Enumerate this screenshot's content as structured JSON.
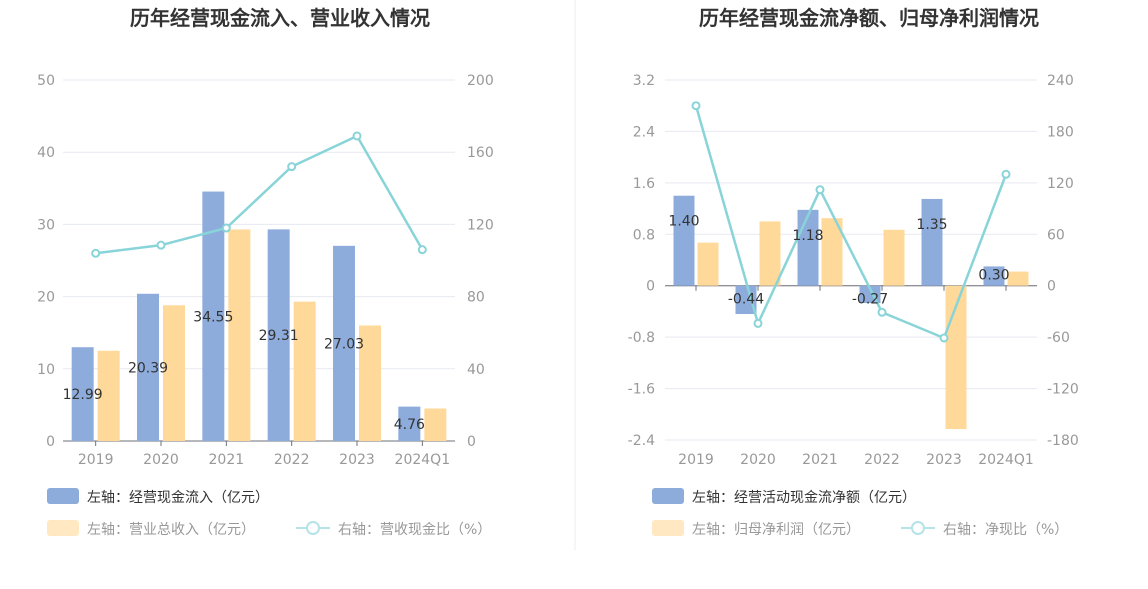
{
  "chart_data": [
    {
      "type": "bar",
      "title": "历年经营现金流入、营业收入情况",
      "categories": [
        "2019",
        "2020",
        "2021",
        "2022",
        "2023",
        "2024Q1"
      ],
      "y_left": {
        "min": 0,
        "max": 50,
        "ticks": [
          "0",
          "10",
          "20",
          "30",
          "40",
          "50"
        ]
      },
      "y_right": {
        "min": 0,
        "max": 200,
        "ticks": [
          "0",
          "40",
          "80",
          "120",
          "160",
          "200"
        ]
      },
      "series": [
        {
          "name": "左轴：经营现金流入（亿元）",
          "axis": "left",
          "kind": "bar",
          "color": "#8eacdb",
          "values": [
            12.99,
            20.39,
            34.55,
            29.31,
            27.03,
            4.76
          ],
          "labels": [
            "12.99",
            "20.39",
            "34.55",
            "29.31",
            "27.03",
            "4.76"
          ]
        },
        {
          "name": "左轴：营业总收入（亿元）",
          "axis": "left",
          "kind": "bar",
          "color": "#ffd99a",
          "values": [
            12.5,
            18.8,
            29.3,
            19.3,
            16.0,
            4.5
          ]
        },
        {
          "name": "右轴：营收现金比（%）",
          "axis": "right",
          "kind": "line",
          "color": "#88d4d8",
          "values": [
            104,
            108.5,
            118,
            152,
            169,
            106
          ]
        }
      ],
      "legend_placement": "bottom"
    },
    {
      "type": "bar",
      "title": "历年经营现金流净额、归母净利润情况",
      "categories": [
        "2019",
        "2020",
        "2021",
        "2022",
        "2023",
        "2024Q1"
      ],
      "y_left": {
        "min": -2.4,
        "max": 3.2,
        "ticks": [
          "-2.4",
          "-1.6",
          "-0.8",
          "0",
          "0.8",
          "1.6",
          "2.4",
          "3.2"
        ]
      },
      "y_right": {
        "min": -180,
        "max": 240,
        "ticks": [
          "-180",
          "-120",
          "-60",
          "0",
          "60",
          "120",
          "180",
          "240"
        ]
      },
      "series": [
        {
          "name": "左轴：经营活动现金流净额（亿元）",
          "axis": "left",
          "kind": "bar",
          "color": "#8eacdb",
          "values": [
            1.4,
            -0.44,
            1.18,
            -0.27,
            1.35,
            0.3
          ],
          "labels": [
            "1.40",
            "-0.44",
            "1.18",
            "-0.27",
            "1.35",
            "0.30"
          ]
        },
        {
          "name": "左轴：归母净利润（亿元）",
          "axis": "left",
          "kind": "bar",
          "color": "#ffd99a",
          "values": [
            0.67,
            1.0,
            1.05,
            0.87,
            -2.23,
            0.22
          ]
        },
        {
          "name": "右轴：净现比（%）",
          "axis": "right",
          "kind": "line",
          "color": "#88d4d8",
          "values": [
            210,
            -44,
            112,
            -31,
            -61,
            130
          ]
        }
      ],
      "legend_placement": "bottom"
    }
  ]
}
